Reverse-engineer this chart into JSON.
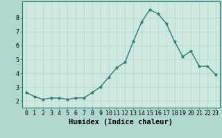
{
  "x": [
    0,
    1,
    2,
    3,
    4,
    5,
    6,
    7,
    8,
    9,
    10,
    11,
    12,
    13,
    14,
    15,
    16,
    17,
    18,
    19,
    20,
    21,
    22,
    23
  ],
  "y": [
    2.6,
    2.3,
    2.1,
    2.2,
    2.2,
    2.1,
    2.2,
    2.2,
    2.6,
    3.0,
    3.7,
    4.4,
    4.8,
    6.3,
    7.7,
    8.6,
    8.3,
    7.6,
    6.3,
    5.2,
    5.6,
    4.5,
    4.5,
    3.9
  ],
  "line_color": "#2d7b6e",
  "marker": "*",
  "marker_size": 3.5,
  "bg_color": "#cce8e0",
  "grid_color": "#b8d8cf",
  "outer_bg": "#b0d8d0",
  "xlabel": "Humidex (Indice chaleur)",
  "xlim": [
    -0.5,
    23.5
  ],
  "ylim": [
    1.5,
    9.2
  ],
  "yticks": [
    2,
    3,
    4,
    5,
    6,
    7,
    8
  ],
  "xticks": [
    0,
    1,
    2,
    3,
    4,
    5,
    6,
    7,
    8,
    9,
    10,
    11,
    12,
    13,
    14,
    15,
    16,
    17,
    18,
    19,
    20,
    21,
    22,
    23
  ],
  "tick_label_fontsize": 6.0,
  "xlabel_fontsize": 7.5,
  "line_width": 1.0,
  "spine_color": "#2d7b6e"
}
